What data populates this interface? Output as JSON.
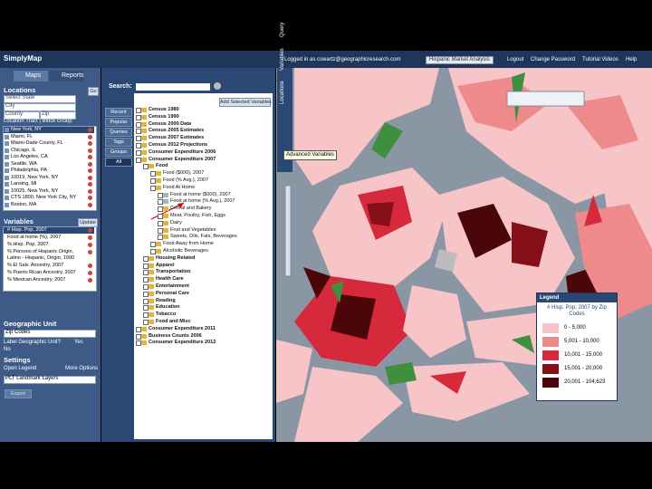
{
  "header": {
    "logo": "SimplyMap",
    "logged_in": "Logged in as cswartz@geographicresearch.com",
    "project": "Hispanic Market Analysis",
    "links": [
      "Logout",
      "Change Password",
      "Tutorial Videos",
      "Help"
    ]
  },
  "left": {
    "tabs": [
      "Maps",
      "Reports"
    ],
    "locations": {
      "title": "Locations",
      "go": "Go",
      "fields": [
        "Select State",
        "City",
        "County",
        "Zip"
      ],
      "link": "Location Tract | Block Group",
      "items": [
        "New York, NY",
        "Miami, FL",
        "Miami-Dade County, FL",
        "Chicago, IL",
        "Los Angeles, CA",
        "Seattle, WA",
        "Philadelphia, PA",
        "10019, New York, NY",
        "Lansing, MI",
        "10025, New York, NY",
        "CTS 1800, New York City, NY",
        "Boston, MA"
      ]
    },
    "variables": {
      "title": "Variables",
      "button": "Update",
      "items": [
        "# Hisp. Pop, 2007",
        "Food at home (%), 2007",
        "% Hisp. Pop, 2007",
        "% Persons of Hispanic Origin, Latino - Hispanic, Origin, 1990",
        "% El Salv. Ancestry, 2007",
        "% Puerto Rican Ancestry, 2007",
        "% Mexican Ancestry, 2007"
      ]
    },
    "geo_unit": {
      "title": "Geographic Unit",
      "select": "Zip Codes",
      "label": "Label Geographic Unit?",
      "yes": "Yes",
      "no": "No"
    },
    "settings": {
      "title": "Settings",
      "open_legend": "Open Legend",
      "more_options": "More Options",
      "select": "PLT Landmark Layers",
      "export": "Export"
    }
  },
  "middle": {
    "search_label": "Search:",
    "add_button": "Add Selected Variables",
    "side_buttons": [
      "Recent",
      "Popular",
      "Queries",
      "Tags",
      "Groups",
      "All"
    ],
    "tree": [
      [
        "Census 1980",
        1
      ],
      [
        "Census 1990",
        1
      ],
      [
        "Census 2000 Data",
        1
      ],
      [
        "Census 2005 Estimates",
        1
      ],
      [
        "Census 2007 Estimates",
        1
      ],
      [
        "Census 2012 Projections",
        1
      ],
      [
        "Consumer Expenditure 2006",
        1
      ],
      [
        "Consumer Expenditure 2007",
        1
      ],
      [
        "Food",
        2
      ],
      [
        "Food ($000), 2007",
        3
      ],
      [
        "Food (% Avg.), 2007",
        3
      ],
      [
        "Food At Home",
        3
      ],
      [
        "Food at home ($000), 2007",
        4
      ],
      [
        "Food at home (% Avg.), 2007",
        4
      ],
      [
        "Cereal and Bakery",
        4
      ],
      [
        "Meat, Poultry, Fish, Eggs",
        4
      ],
      [
        "Dairy",
        4
      ],
      [
        "Fruit and Vegetables",
        4
      ],
      [
        "Sweets, Oils, Fats, Beverages",
        4
      ],
      [
        "Food Away from Home",
        3
      ],
      [
        "Alcoholic Beverages",
        3
      ],
      [
        "Housing Related",
        2
      ],
      [
        "Apparel",
        2
      ],
      [
        "Transportation",
        2
      ],
      [
        "Health Care",
        2
      ],
      [
        "Entertainment",
        2
      ],
      [
        "Personal Care",
        2
      ],
      [
        "Reading",
        2
      ],
      [
        "Education",
        2
      ],
      [
        "Tobacco",
        2
      ],
      [
        "Food and Misc",
        2
      ],
      [
        "Consumer Expenditure 2011",
        1
      ],
      [
        "Business Counts 2006",
        1
      ],
      [
        "Consumer Expenditure 2012",
        1
      ]
    ]
  },
  "map": {
    "tabs": [
      "Locations",
      "Variables",
      "Query"
    ],
    "tooltip": "Advanced Variables",
    "legend": {
      "title": "Legend",
      "subtitle": "# Hisp. Pop, 2007 by Zip Codes",
      "entries": [
        {
          "label": "0 - 5,000",
          "color": "#f7c4c7"
        },
        {
          "label": "5,001 - 10,000",
          "color": "#ef8a8c"
        },
        {
          "label": "10,001 - 15,000",
          "color": "#d62a3c"
        },
        {
          "label": "15,001 - 20,000",
          "color": "#861018"
        },
        {
          "label": "20,001 - 104,623",
          "color": "#4a0608"
        }
      ]
    }
  }
}
